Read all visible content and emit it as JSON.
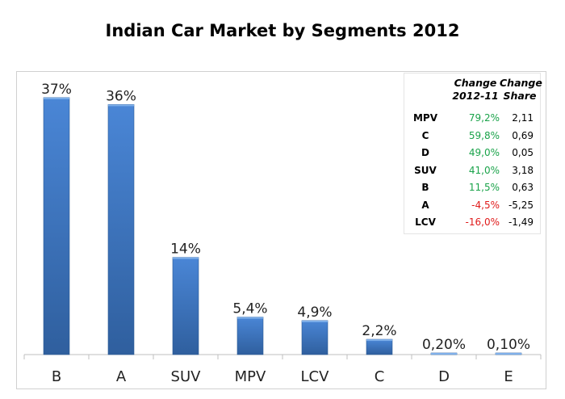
{
  "chart_data": {
    "type": "bar",
    "title": "Indian Car Market by Segments 2012",
    "categories": [
      "B",
      "A",
      "SUV",
      "MPV",
      "LCV",
      "C",
      "D",
      "E"
    ],
    "values": [
      37,
      36,
      14,
      5.4,
      4.9,
      2.2,
      0.2,
      0.1
    ],
    "data_labels": [
      "37%",
      "36%",
      "14%",
      "5,4%",
      "4,9%",
      "2,2%",
      "0,20%",
      "0,10%"
    ],
    "unit": "%",
    "xlabel": "",
    "ylabel": "",
    "ylim": [
      0,
      38
    ],
    "grid": false,
    "bar_color": "#3a73c0",
    "table": {
      "headers": [
        [
          "Change",
          "2012-11"
        ],
        [
          "Change",
          "Share"
        ]
      ],
      "rows": [
        {
          "segment": "MPV",
          "change": "79,2%",
          "share": "2,11"
        },
        {
          "segment": "C",
          "change": "59,8%",
          "share": "0,69"
        },
        {
          "segment": "D",
          "change": "49,0%",
          "share": "0,05"
        },
        {
          "segment": "SUV",
          "change": "41,0%",
          "share": "3,18"
        },
        {
          "segment": "B",
          "change": "11,5%",
          "share": "0,63"
        },
        {
          "segment": "A",
          "change": "-4,5%",
          "share": "-5,25"
        },
        {
          "segment": "LCV",
          "change": "-16,0%",
          "share": "-1,49"
        }
      ],
      "positive_color": "#1aa34a",
      "negative_color": "#e01b1b"
    }
  }
}
